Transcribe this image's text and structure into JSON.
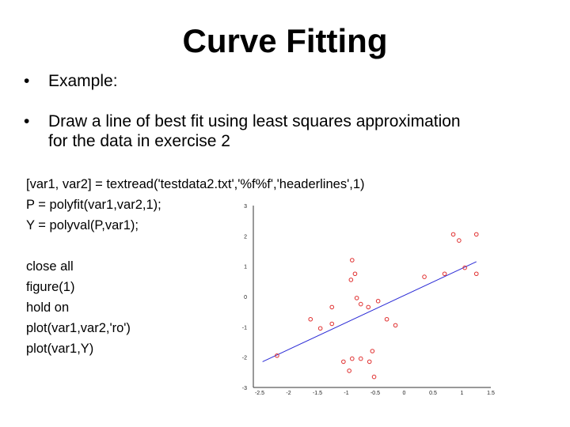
{
  "slide": {
    "title": "Curve Fitting",
    "bullet_char": "•",
    "bullets": [
      {
        "text": "Example:"
      },
      {
        "line1": "Draw a line of best fit using least squares approximation",
        "line2": "for the data in exercise 2"
      }
    ],
    "code_block_1": [
      "[var1, var2] = textread('testdata2.txt','%f%f','headerlines',1)",
      "P = polyfit(var1,var2,1);",
      "Y = polyval(P,var1);"
    ],
    "code_block_2": [
      "close all",
      "figure(1)",
      "hold on",
      "plot(var1,var2,'ro')",
      "plot(var1,Y)"
    ]
  },
  "chart_data": {
    "type": "scatter",
    "title": "",
    "xlabel": "",
    "ylabel": "",
    "xlim": [
      -2.5,
      1.5
    ],
    "ylim": [
      -3,
      3
    ],
    "x_ticks": [
      "-2.5",
      "-2",
      "-1.5",
      "-1",
      "-0.5",
      "0",
      "0.5",
      "1",
      "1.5"
    ],
    "y_ticks": [
      "-3",
      "-2",
      "-1",
      "0",
      "1",
      "2",
      "3"
    ],
    "grid": false,
    "colors": {
      "points": "#e03030",
      "line": "#2b2bd6",
      "axis": "#333333"
    },
    "series": [
      {
        "marker": "circle",
        "points": [
          [
            -2.2,
            -1.95
          ],
          [
            -1.62,
            -0.75
          ],
          [
            -1.45,
            -1.05
          ],
          [
            -1.25,
            -0.9
          ],
          [
            -1.25,
            -0.35
          ],
          [
            -1.05,
            -2.15
          ],
          [
            -0.95,
            -2.45
          ],
          [
            -0.9,
            -2.05
          ],
          [
            -0.75,
            -2.05
          ],
          [
            -0.9,
            1.2
          ],
          [
            -0.92,
            0.55
          ],
          [
            -0.85,
            0.75
          ],
          [
            -0.82,
            -0.05
          ],
          [
            -0.75,
            -0.25
          ],
          [
            -0.62,
            -0.35
          ],
          [
            -0.55,
            -1.8
          ],
          [
            -0.6,
            -2.15
          ],
          [
            -0.52,
            -2.65
          ],
          [
            -0.45,
            -0.15
          ],
          [
            -0.3,
            -0.75
          ],
          [
            -0.15,
            -0.95
          ],
          [
            0.35,
            0.65
          ],
          [
            0.7,
            0.75
          ],
          [
            0.85,
            2.05
          ],
          [
            0.95,
            1.85
          ],
          [
            1.05,
            0.95
          ],
          [
            1.25,
            2.05
          ],
          [
            1.25,
            0.75
          ]
        ]
      },
      {
        "type": "line",
        "points": [
          [
            -2.45,
            -2.15
          ],
          [
            1.25,
            1.15
          ]
        ]
      }
    ]
  }
}
